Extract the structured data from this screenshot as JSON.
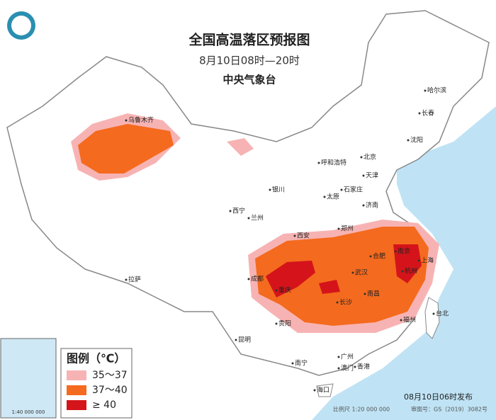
{
  "header": {
    "title": "全国高温落区预报图",
    "subtitle": "8月10日08时—20时",
    "issuer": "中央气象台"
  },
  "legend": {
    "title": "图例（℃）",
    "items": [
      {
        "label": "35～37",
        "color": "#f7b3b3"
      },
      {
        "label": "37～40",
        "color": "#f46a1e"
      },
      {
        "label": "≥ 40",
        "color": "#d4141a"
      }
    ]
  },
  "cities": [
    "乌鲁木齐",
    "哈尔滨",
    "长春",
    "沈阳",
    "北京",
    "天津",
    "呼和浩特",
    "石家庄",
    "太原",
    "济南",
    "银川",
    "西宁",
    "兰州",
    "郑州",
    "西安",
    "拉萨",
    "成都",
    "重庆",
    "武汉",
    "合肥",
    "南京",
    "上海",
    "杭州",
    "南昌",
    "长沙",
    "贵阳",
    "福州",
    "台北",
    "昆明",
    "南宁",
    "广州",
    "澳门",
    "香港",
    "海口"
  ],
  "inset": {
    "scale": "1:40 000 000"
  },
  "footer": {
    "issued": "08月10日06时发布",
    "scale": "比例尺 1:20 000 000",
    "review": "审图号：GS（2019）3082号"
  }
}
